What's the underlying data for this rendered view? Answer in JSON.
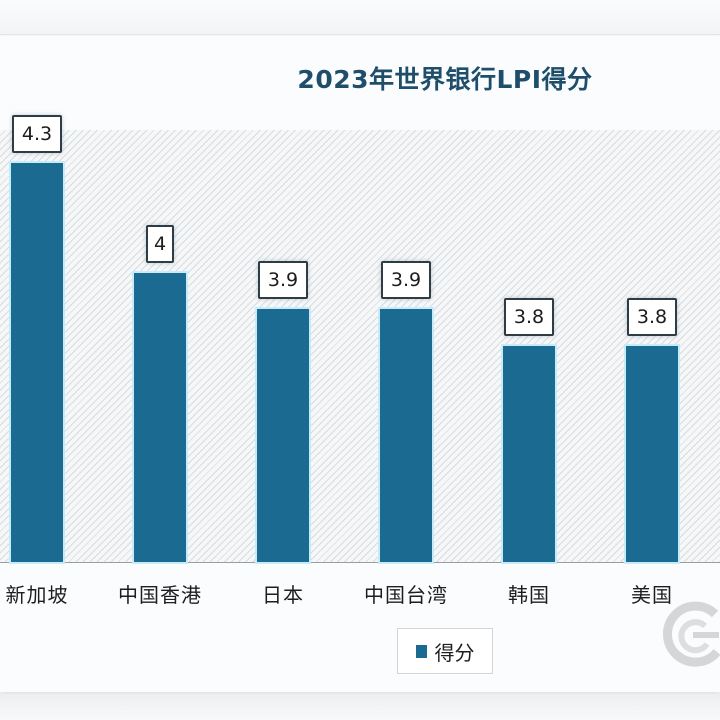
{
  "chart_data": {
    "type": "bar",
    "title": "2023年世界银行LPI得分",
    "categories": [
      "新加坡",
      "中国香港",
      "日本",
      "中国台湾",
      "韩国",
      "美国"
    ],
    "series": [
      {
        "name": "得分",
        "values": [
          4.3,
          4.0,
          3.9,
          3.9,
          3.8,
          3.8
        ],
        "color": "#1a6a92"
      }
    ],
    "data_labels": [
      "4.3",
      "4",
      "3.9",
      "3.9",
      "3.8",
      "3.8"
    ],
    "xlabel": "",
    "ylabel": "",
    "y_axis_visible": false,
    "grid": false,
    "legend_position": "bottom",
    "background": "diagonal-hatched"
  },
  "title": "2023年世界银行LPI得分",
  "bars": [
    {
      "label": "新加坡",
      "value_label": "4.3"
    },
    {
      "label": "中国香港",
      "value_label": "4"
    },
    {
      "label": "日本",
      "value_label": "3.9"
    },
    {
      "label": "中国台湾",
      "value_label": "3.9"
    },
    {
      "label": "韩国",
      "value_label": "3.8"
    },
    {
      "label": "美国",
      "value_label": "3.8"
    }
  ],
  "legend": {
    "label": "得分",
    "color": "#1a6a92"
  },
  "watermark": {
    "icon": "logo-watermark-icon"
  }
}
